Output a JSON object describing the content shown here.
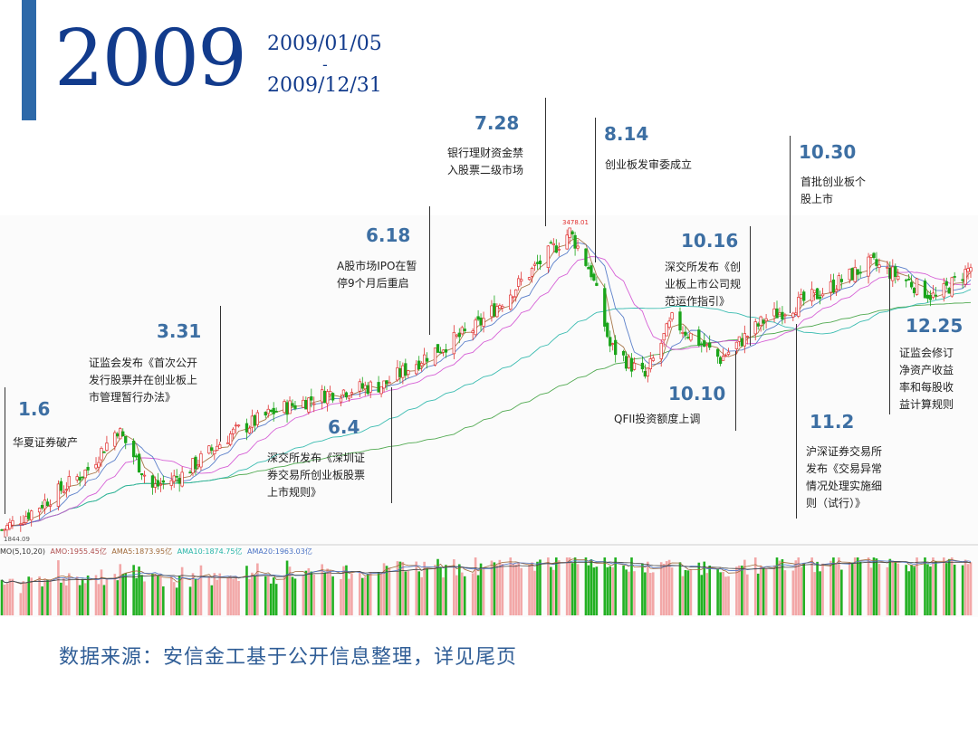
{
  "header": {
    "year": "2009",
    "date_start": "2009/01/05",
    "date_sep": "-",
    "date_end": "2009/12/31"
  },
  "colors": {
    "accent": "#2d69a9",
    "title": "#123b8c",
    "up": "#e03030",
    "down": "#1aa51a",
    "ma5": "#a06a3a",
    "ma10": "#4a72c4",
    "ma20": "#d24fd2",
    "ma60": "#26b5a8",
    "ma120": "#3fa13f"
  },
  "chart_data": {
    "type": "candlestick",
    "period": [
      "2009/01/05",
      "2009/12/31"
    ],
    "price_high": 3478.01,
    "price_low": 1844.09,
    "high_label": "3478.01",
    "low_label": "1844.09",
    "moving_averages": [
      "MA5",
      "MA10",
      "MA20",
      "MA60",
      "MA120"
    ],
    "close_trajectory": [
      {
        "date": "2009-01-05",
        "value": 1850
      },
      {
        "date": "2009-01-16",
        "value": 1950
      },
      {
        "date": "2009-02-06",
        "value": 2180
      },
      {
        "date": "2009-02-17",
        "value": 2400
      },
      {
        "date": "2009-03-02",
        "value": 2080
      },
      {
        "date": "2009-03-13",
        "value": 2150
      },
      {
        "date": "2009-03-31",
        "value": 2370
      },
      {
        "date": "2009-04-17",
        "value": 2500
      },
      {
        "date": "2009-05-08",
        "value": 2600
      },
      {
        "date": "2009-05-27",
        "value": 2640
      },
      {
        "date": "2009-06-12",
        "value": 2800
      },
      {
        "date": "2009-06-30",
        "value": 2950
      },
      {
        "date": "2009-07-17",
        "value": 3200
      },
      {
        "date": "2009-08-04",
        "value": 3470
      },
      {
        "date": "2009-08-12",
        "value": 3250
      },
      {
        "date": "2009-08-19",
        "value": 2850
      },
      {
        "date": "2009-09-01",
        "value": 2680
      },
      {
        "date": "2009-09-11",
        "value": 2990
      },
      {
        "date": "2009-09-29",
        "value": 2780
      },
      {
        "date": "2009-10-16",
        "value": 3000
      },
      {
        "date": "2009-11-03",
        "value": 3120
      },
      {
        "date": "2009-11-24",
        "value": 3300
      },
      {
        "date": "2009-12-08",
        "value": 3200
      },
      {
        "date": "2009-12-18",
        "value": 3110
      },
      {
        "date": "2009-12-31",
        "value": 3277
      }
    ],
    "volume_legend": [
      "MO(5,10,20)",
      "AMO:1955.45亿",
      "AMA5:1873.95亿",
      "AMA10:1874.75亿",
      "AMA20:1963.03亿"
    ],
    "annotations": [
      {
        "date": "1.6",
        "text": "华夏证券破产"
      },
      {
        "date": "3.31",
        "text": "证监会发布《首次公开发行股票并在创业板上市管理暂行办法》"
      },
      {
        "date": "6.4",
        "text": "深交所发布《深圳证券交易所创业板股票上市规则》"
      },
      {
        "date": "6.18",
        "text": "A股市场IPO在暂停9个月后重启"
      },
      {
        "date": "7.28",
        "text": "银行理财资金禁入股票二级市场"
      },
      {
        "date": "8.14",
        "text": "创业板发审委成立"
      },
      {
        "date": "10.10",
        "text": "QFII投资额度上调"
      },
      {
        "date": "10.16",
        "text": "深交所发布《创业板上市公司规范运作指引》"
      },
      {
        "date": "10.30",
        "text": "首批创业板个股上市"
      },
      {
        "date": "11.2",
        "text": "沪深证券交易所发布《交易异常情况处理实施细则（试行）》"
      },
      {
        "date": "12.25",
        "text": "证监会修订净资产收益率和每股收益计算规则"
      }
    ]
  },
  "annotation_lines": {
    "a1": [
      "华夏证券破产"
    ],
    "a2": [
      "证监会发布《首次公开",
      "发行股票并在创业板上",
      "市管理暂行办法》"
    ],
    "a3": [
      "深交所发布《深圳证",
      "券交易所创业板股票",
      "上市规则》"
    ],
    "a4": [
      "A股市场IPO在暂",
      "停9个月后重启"
    ],
    "a5": [
      "银行理财资金禁",
      "入股票二级市场"
    ],
    "a6": [
      "创业板发审委成立"
    ],
    "a7": [
      "QFII投资额度上调"
    ],
    "a8": [
      "深交所发布《创",
      "业板上市公司规",
      "范运作指引》"
    ],
    "a9": [
      "首批创业板个",
      "股上市"
    ],
    "a10": [
      "沪深证券交易所",
      "发布《交易异常",
      "情况处理实施细",
      "则（试行）》"
    ],
    "a11": [
      "证监会修订",
      "净资产收益",
      "率和每股收",
      "益计算规则"
    ]
  },
  "footer": {
    "source": "数据来源：安信金工基于公开信息整理，详见尾页"
  }
}
